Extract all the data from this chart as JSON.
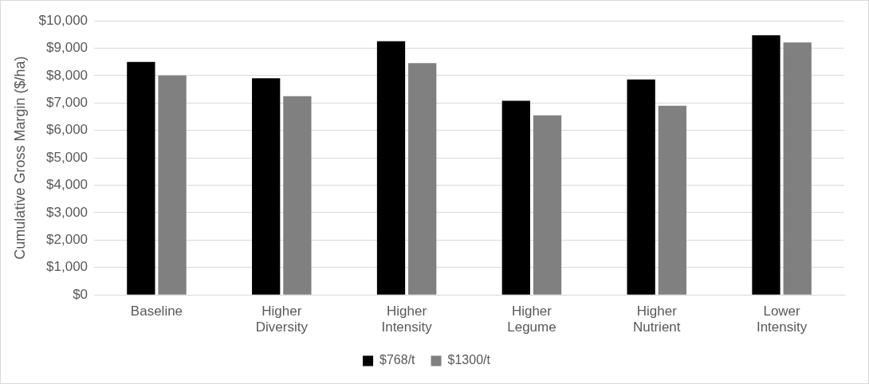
{
  "chart_data": {
    "type": "bar",
    "ylabel": "Cumulative Gross Margin ($/ha)",
    "categories": [
      "Baseline",
      "Higher Diversity",
      "Higher Intensity",
      "Higher Legume",
      "Higher Nutrient",
      "Lower Intensity"
    ],
    "series": [
      {
        "name": "$768/t",
        "color": "#000000",
        "values": [
          8500,
          7900,
          9250,
          7080,
          7860,
          9470
        ]
      },
      {
        "name": "$1300/t",
        "color": "#808080",
        "values": [
          8000,
          7250,
          8450,
          6550,
          6900,
          9210
        ]
      }
    ],
    "ylim": [
      0,
      10000
    ],
    "yticks": [
      {
        "value": 0,
        "label": "$0"
      },
      {
        "value": 1000,
        "label": "$1,000"
      },
      {
        "value": 2000,
        "label": "$2,000"
      },
      {
        "value": 3000,
        "label": "$3,000"
      },
      {
        "value": 4000,
        "label": "$4,000"
      },
      {
        "value": 5000,
        "label": "$5,000"
      },
      {
        "value": 6000,
        "label": "$6,000"
      },
      {
        "value": 7000,
        "label": "$7,000"
      },
      {
        "value": 8000,
        "label": "$8,000"
      },
      {
        "value": 9000,
        "label": "$9,000"
      },
      {
        "value": 10000,
        "label": "$10,000"
      }
    ],
    "grid": "y",
    "legend": "bottom"
  }
}
